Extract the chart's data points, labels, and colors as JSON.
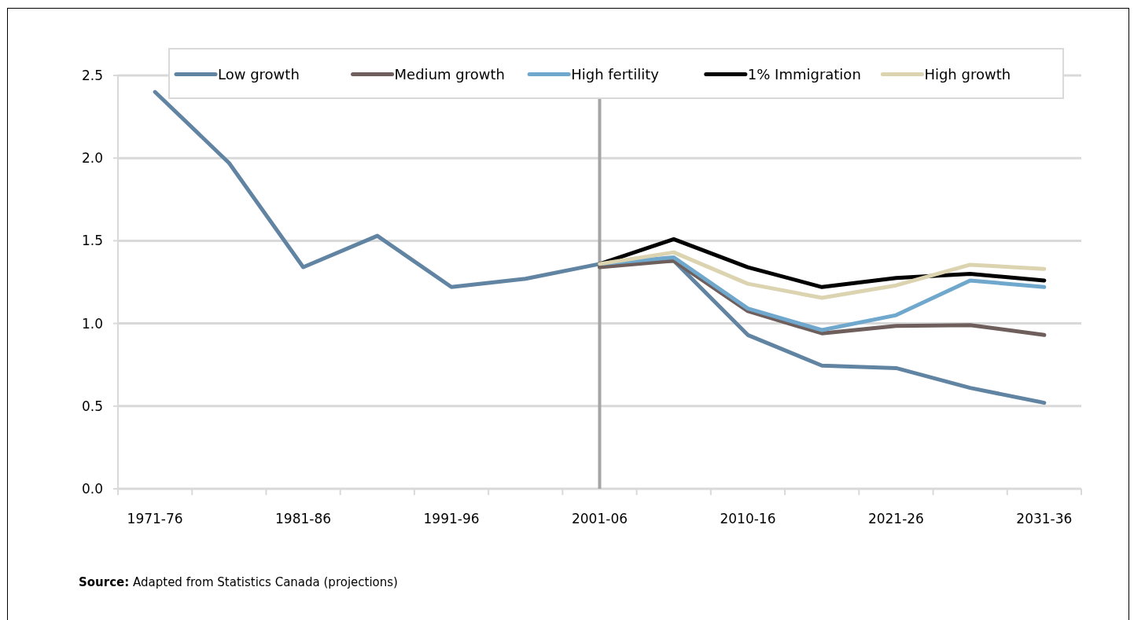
{
  "chart_data": {
    "type": "line",
    "categories": [
      "1971-76",
      null,
      "1981-86",
      null,
      "1991-96",
      null,
      "2001-06",
      null,
      "2010-16",
      null,
      "2021-26",
      null,
      "2031-36"
    ],
    "series": [
      {
        "name": "Low growth",
        "color": "#6184a3",
        "values": [
          2.4,
          1.97,
          1.34,
          1.53,
          1.22,
          1.27,
          1.36,
          1.38,
          0.93,
          0.745,
          0.73,
          0.61,
          0.52
        ]
      },
      {
        "name": "Medium growth",
        "color": "#6e5f5d",
        "values": [
          null,
          null,
          null,
          null,
          null,
          null,
          1.34,
          1.38,
          1.075,
          0.94,
          0.985,
          0.99,
          0.93
        ]
      },
      {
        "name": "High fertility",
        "color": "#6fa8cc",
        "values": [
          null,
          null,
          null,
          null,
          null,
          null,
          1.36,
          1.4,
          1.09,
          0.96,
          1.05,
          1.26,
          1.22
        ]
      },
      {
        "name": "1% Immigration",
        "color": "#000000",
        "values": [
          null,
          null,
          null,
          null,
          null,
          null,
          1.36,
          1.51,
          1.34,
          1.22,
          1.275,
          1.3,
          1.26
        ]
      },
      {
        "name": "High growth",
        "color": "#dcd3b1",
        "values": [
          null,
          null,
          null,
          null,
          null,
          null,
          1.36,
          1.43,
          1.24,
          1.155,
          1.23,
          1.355,
          1.33
        ]
      }
    ],
    "ylim": [
      0,
      2.5
    ],
    "yticks": [
      {
        "value": 0,
        "label": "0.0"
      },
      0.5,
      {
        "value": 1,
        "label": "1.0"
      },
      1.5,
      {
        "value": 2,
        "label": "2.0"
      },
      2.5
    ],
    "grid": "y",
    "legend": "top",
    "line_style": "solid",
    "ref_lines": [
      {
        "axis": "x",
        "value": "2001-06",
        "color": "#a5a5a5"
      }
    ],
    "annotations": [
      "Source: Adapted from Statistics Canada (projections)"
    ]
  }
}
